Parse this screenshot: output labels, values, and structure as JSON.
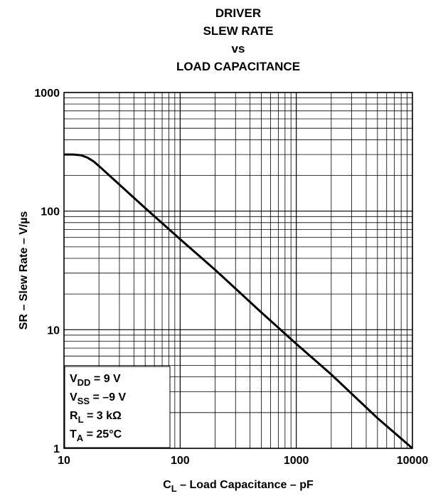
{
  "chart_data": {
    "type": "line",
    "title": [
      "DRIVER",
      "SLEW RATE",
      "vs",
      "LOAD CAPACITANCE"
    ],
    "xlabel": {
      "symbol": "C",
      "subscript": "L",
      "text": " – Load Capacitance – pF"
    },
    "ylabel": "SR – Slew Rate – V/µs",
    "xscale": "log",
    "yscale": "log",
    "xlim": [
      10,
      10000
    ],
    "ylim": [
      1,
      1000
    ],
    "xticks": [
      10,
      100,
      1000,
      10000
    ],
    "yticks": [
      1,
      10,
      100,
      1000
    ],
    "xminor_ticks": [
      20,
      30,
      40,
      50,
      60,
      70,
      80,
      90,
      200,
      300,
      400,
      500,
      600,
      700,
      800,
      900,
      2000,
      3000,
      4000,
      5000,
      6000,
      7000,
      8000,
      9000
    ],
    "yminor_ticks": [
      2,
      3,
      4,
      5,
      6,
      7,
      8,
      9,
      20,
      30,
      40,
      50,
      60,
      70,
      80,
      90,
      200,
      300,
      400,
      500,
      600,
      700,
      800,
      900
    ],
    "grid": true,
    "color": "#000000",
    "x": [
      10,
      12,
      14,
      16,
      18,
      20,
      50,
      100,
      200,
      500,
      1000,
      2000,
      5000,
      10000
    ],
    "values": [
      300,
      300,
      296,
      282,
      262,
      240,
      106,
      58,
      32,
      14,
      7.6,
      4.2,
      1.8,
      1
    ],
    "annotations": [
      {
        "symbol": "V",
        "subscript": "DD",
        "text": " = 9 V"
      },
      {
        "symbol": "V",
        "subscript": "SS",
        "text": " = –9 V"
      },
      {
        "symbol": "R",
        "subscript": "L",
        "text": " = 3 kΩ"
      },
      {
        "symbol": "T",
        "subscript": "A",
        "text": " = 25°C"
      }
    ]
  }
}
